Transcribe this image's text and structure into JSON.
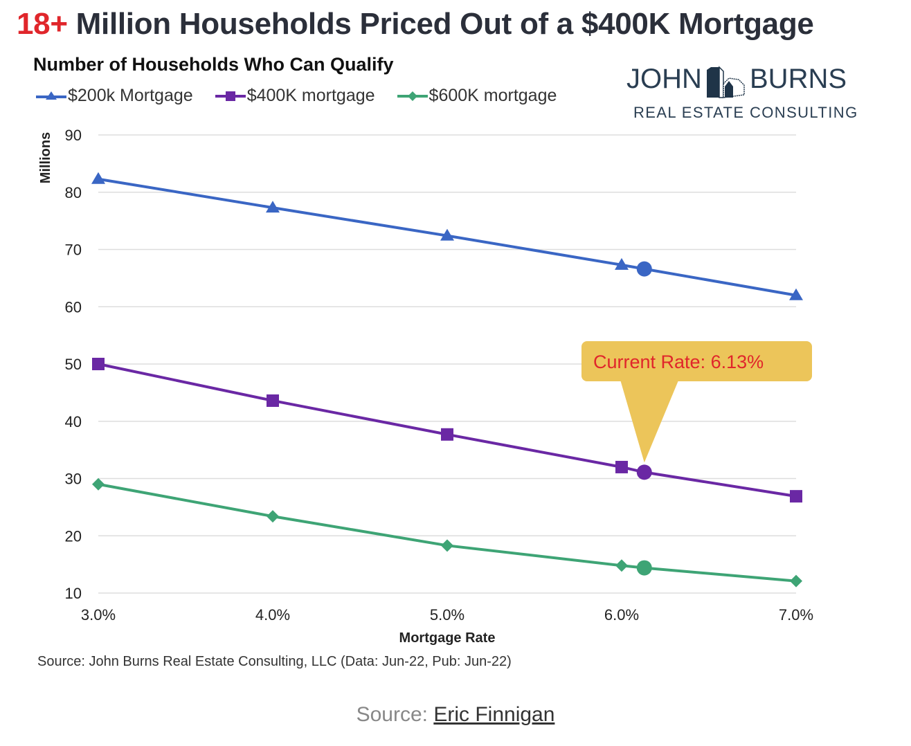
{
  "header": {
    "headline_accent": "18+",
    "headline_rest": " Million Households Priced Out of a $400K Mortgage",
    "subtitle": "Number of Households Who Can Qualify"
  },
  "logo": {
    "top_left": "JOHN",
    "top_right": "BURNS",
    "bottom": "REAL ESTATE CONSULTING",
    "icon": "house-buildings-icon"
  },
  "footer": {
    "source": "Source: John Burns Real Estate Consulting, LLC (Data: Jun-22, Pub: Jun-22)",
    "credit_prefix": "Source: ",
    "credit_link": "Eric Finnigan"
  },
  "colors": {
    "blue": "#3a66c4",
    "purple": "#6a28a4",
    "green": "#3ea475",
    "callout_bg": "#ecc55a",
    "callout_text": "#e0262b",
    "headline_accent": "#e0262b",
    "grid": "#dddddd"
  },
  "chart_data": {
    "type": "line",
    "title": "Number of Households Who Can Qualify",
    "xlabel": "Mortgage Rate",
    "ylabel": "Millions",
    "x": [
      3.0,
      4.0,
      5.0,
      6.0,
      7.0
    ],
    "x_tick_labels": [
      "3.0%",
      "4.0%",
      "5.0%",
      "6.0%",
      "7.0%"
    ],
    "xlim": [
      3.0,
      7.0
    ],
    "ylim": [
      10,
      90
    ],
    "y_ticks": [
      10,
      20,
      30,
      40,
      50,
      60,
      70,
      80,
      90
    ],
    "grid": true,
    "legend_position": "top-left",
    "series": [
      {
        "name": "$200k Mortgage",
        "marker": "triangle",
        "color": "#3a66c4",
        "values": [
          82.3,
          77.3,
          72.4,
          67.3,
          62.0
        ],
        "current_value": 66.6
      },
      {
        "name": "$400K mortgage",
        "marker": "square",
        "color": "#6a28a4",
        "values": [
          50.0,
          43.6,
          37.7,
          32.0,
          26.9
        ],
        "current_value": 31.1
      },
      {
        "name": "$600K mortgage",
        "marker": "diamond",
        "color": "#3ea475",
        "values": [
          29.0,
          23.4,
          18.3,
          14.8,
          12.1
        ],
        "current_value": 14.4
      }
    ],
    "current_rate": 6.13,
    "annotation": "Current Rate: 6.13%"
  }
}
